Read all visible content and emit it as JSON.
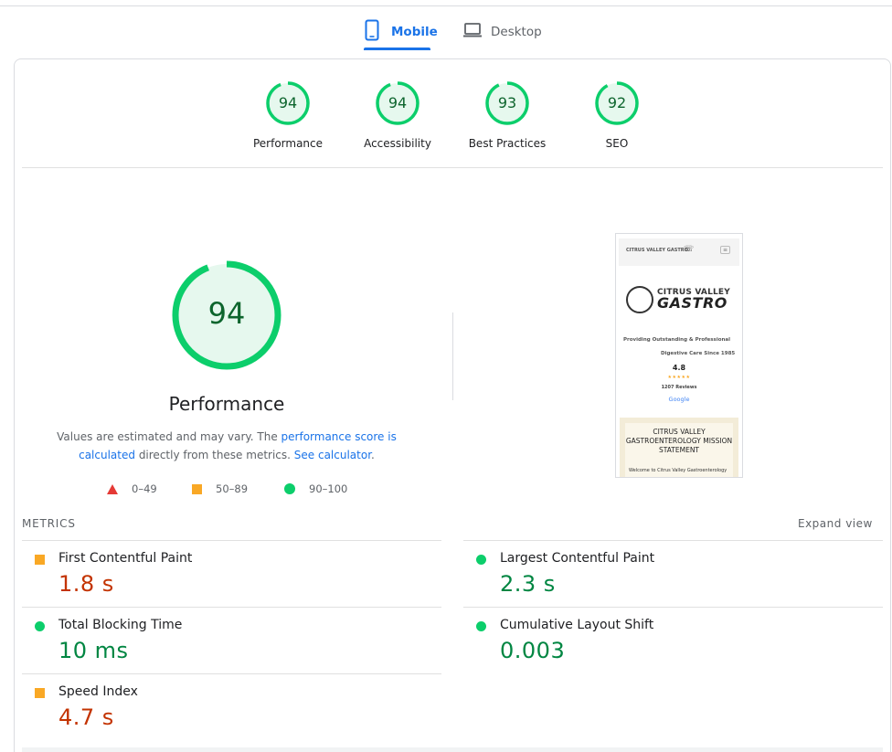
{
  "device_tabs": {
    "mobile_label": "Mobile",
    "desktop_label": "Desktop",
    "selected": "Mobile"
  },
  "categories": [
    {
      "label": "Performance",
      "score": "94"
    },
    {
      "label": "Accessibility",
      "score": "94"
    },
    {
      "label": "Best Practices",
      "score": "93"
    },
    {
      "label": "SEO",
      "score": "92"
    }
  ],
  "performance": {
    "score": "94",
    "title": "Performance",
    "desc_prefix": "Values are estimated and may vary. The ",
    "desc_link1": "performance score is calculated",
    "desc_middle": " directly from these metrics. ",
    "desc_link2": "See calculator",
    "desc_suffix": "."
  },
  "legend": {
    "fail": "0–49",
    "average": "50–89",
    "pass": "90–100"
  },
  "screenshot": {
    "logo_mini": "CITRUS VALLEY GASTRO",
    "brand_line1": "CITRUS VALLEY",
    "brand_line2": "GASTRO",
    "tagline1": "Providing Outstanding & Professional",
    "tagline2": "Digestive Care Since 1985",
    "rating": "4.8",
    "stars": "★★★★★",
    "reviews": "1207 Reviews",
    "google": "Google",
    "mission": "CITRUS VALLEY GASTROENTEROLOGY MISSION STATEMENT",
    "welcome": "Welcome to Citrus Valley Gastroenterology"
  },
  "metrics": {
    "header": "METRICS",
    "expand_label": "Expand view",
    "items": [
      {
        "label": "First Contentful Paint",
        "value": "1.8 s",
        "rating": "average"
      },
      {
        "label": "Largest Contentful Paint",
        "value": "2.3 s",
        "rating": "pass"
      },
      {
        "label": "Total Blocking Time",
        "value": "10 ms",
        "rating": "pass"
      },
      {
        "label": "Cumulative Layout Shift",
        "value": "0.003",
        "rating": "pass"
      },
      {
        "label": "Speed Index",
        "value": "4.7 s",
        "rating": "average"
      }
    ]
  },
  "colors": {
    "accent": "#1a73e8",
    "pass": "#0cce6b",
    "pass_text": "#018642",
    "average": "#f9a825",
    "average_text": "#c33300",
    "fail": "#e53935"
  }
}
